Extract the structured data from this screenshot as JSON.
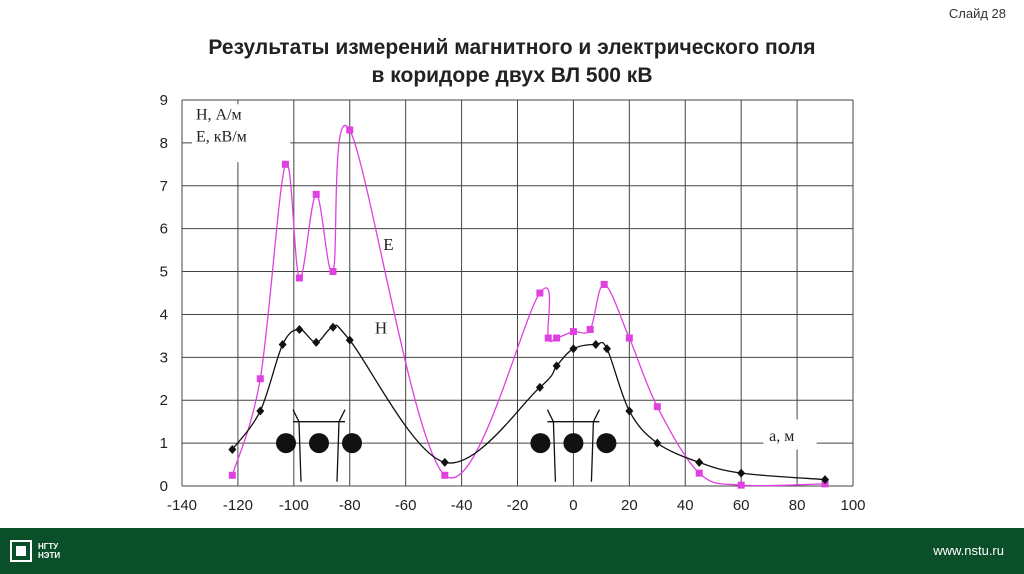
{
  "slide": {
    "number_label": "Слайд 28",
    "title_line1": "Результаты измерений магнитного и электрического поля",
    "title_line2": "в коридоре двух ВЛ 500 кВ"
  },
  "footer": {
    "logo_line1": "НГТУ",
    "logo_line2": "НЭТИ",
    "website": "www.nstu.ru"
  },
  "colors": {
    "series_E": "#e040e0",
    "series_H": "#111111",
    "footer_bg": "#0b4f2a"
  },
  "chart_data": {
    "type": "line",
    "title": "",
    "ylabel_lines": [
      "H, А/м",
      "E, кВ/м"
    ],
    "xlabel": "a, м",
    "xlim": [
      -140,
      100
    ],
    "ylim": [
      0,
      9
    ],
    "xticks": [
      -140,
      -120,
      -100,
      -80,
      -60,
      -40,
      -20,
      0,
      20,
      40,
      60,
      80,
      100
    ],
    "yticks": [
      0,
      1,
      2,
      3,
      4,
      5,
      6,
      7,
      8,
      9
    ],
    "grid": true,
    "series": [
      {
        "name": "E",
        "color": "#e040e0",
        "marker": "square",
        "x": [
          -122,
          -112,
          -103,
          -98,
          -92,
          -86,
          -80,
          -46,
          -12,
          -9,
          -6,
          0,
          6,
          11,
          20,
          30,
          45,
          60,
          90
        ],
        "y": [
          0.25,
          2.5,
          7.5,
          4.85,
          6.8,
          5.0,
          8.3,
          0.25,
          4.5,
          3.45,
          3.45,
          3.6,
          3.65,
          4.7,
          3.45,
          1.85,
          0.3,
          0.02,
          0.05
        ]
      },
      {
        "name": "H",
        "color": "#111111",
        "marker": "diamond",
        "x": [
          -122,
          -112,
          -104,
          -98,
          -92,
          -86,
          -80,
          -46,
          -12,
          -6,
          0,
          8,
          12,
          20,
          30,
          45,
          60,
          90
        ],
        "y": [
          0.85,
          1.75,
          3.3,
          3.65,
          3.35,
          3.7,
          3.4,
          0.55,
          2.3,
          2.8,
          3.2,
          3.3,
          3.2,
          1.75,
          1.0,
          0.55,
          0.3,
          0.15
        ]
      }
    ]
  }
}
